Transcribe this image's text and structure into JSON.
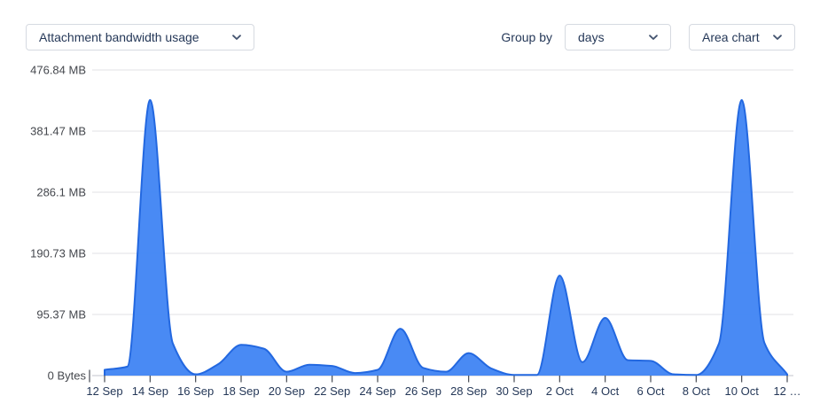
{
  "header": {
    "metric_dropdown": "Attachment bandwidth usage",
    "group_by_label": "Group by",
    "group_by_dropdown": "days",
    "chart_type_dropdown": "Area chart"
  },
  "colors": {
    "series_fill": "#4285f4",
    "series_stroke": "#2368e0",
    "grid_line": "#e1e2e5",
    "axis_line": "#cfd1d6",
    "tick_mark": "#454a52",
    "y_label": "#44474d",
    "x_label": "#253858",
    "control_text": "#253858",
    "control_border": "#d6dae1",
    "chevron": "#42526e"
  },
  "chart_data": {
    "type": "area",
    "title": "Attachment bandwidth usage",
    "group_by": "days",
    "unit": "MB",
    "smooth": true,
    "grid": "horizontal-only",
    "legend": false,
    "ylim": [
      0,
      476.84
    ],
    "x": [
      "12 Sep",
      "13 Sep",
      "14 Sep",
      "15 Sep",
      "16 Sep",
      "17 Sep",
      "18 Sep",
      "19 Sep",
      "20 Sep",
      "21 Sep",
      "22 Sep",
      "23 Sep",
      "24 Sep",
      "25 Sep",
      "26 Sep",
      "27 Sep",
      "28 Sep",
      "29 Sep",
      "30 Sep",
      "1 Oct",
      "2 Oct",
      "3 Oct",
      "4 Oct",
      "5 Oct",
      "6 Oct",
      "7 Oct",
      "8 Oct",
      "9 Oct",
      "10 Oct",
      "11 Oct",
      "12 Oct"
    ],
    "series": [
      {
        "name": "Attachment bandwidth usage (MB)",
        "values": [
          9,
          14,
          430,
          50,
          2,
          18,
          48,
          42,
          6,
          17,
          15,
          4,
          9,
          73,
          12,
          6,
          35,
          11,
          1,
          1,
          156,
          21,
          90,
          24,
          23,
          2,
          1,
          50,
          430,
          51,
          2
        ]
      }
    ],
    "x_tick_labels": [
      "12 Sep",
      "14 Sep",
      "16 Sep",
      "18 Sep",
      "20 Sep",
      "22 Sep",
      "24 Sep",
      "26 Sep",
      "28 Sep",
      "30 Sep",
      "2 Oct",
      "4 Oct",
      "6 Oct",
      "8 Oct",
      "10 Oct",
      "12 …"
    ],
    "y_ticks": [
      {
        "value": 0,
        "label": "0 Bytes"
      },
      {
        "value": 95.37,
        "label": "95.37 MB"
      },
      {
        "value": 190.73,
        "label": "190.73 MB"
      },
      {
        "value": 286.1,
        "label": "286.1 MB"
      },
      {
        "value": 381.47,
        "label": "381.47 MB"
      },
      {
        "value": 476.84,
        "label": "476.84 MB"
      }
    ]
  }
}
